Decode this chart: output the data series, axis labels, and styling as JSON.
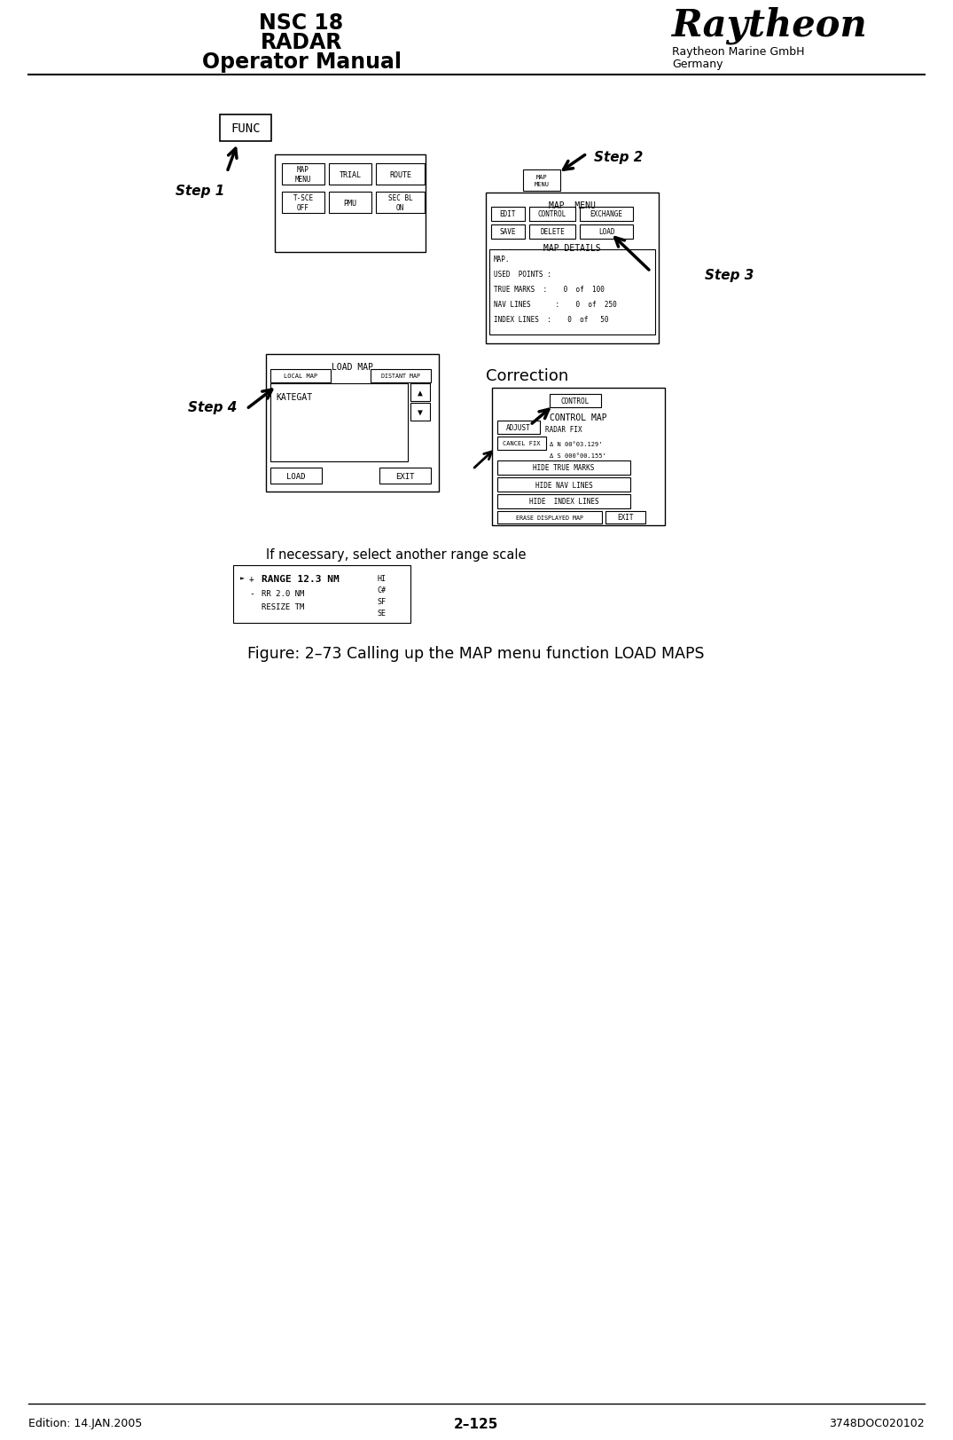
{
  "page_title_left1": "NSC 18",
  "page_title_left2": "RADAR",
  "page_title_left3": "Operator Manual",
  "logo_text": "Raytheon",
  "company_line1": "Raytheon Marine GmbH",
  "company_line2": "Germany",
  "footer_left": "Edition: 14.JAN.2005",
  "footer_center": "2–125",
  "footer_right": "3748DOC020102",
  "figure_caption": "Figure: 2–73 Calling up the MAP menu function LOAD MAPS",
  "step1_label": "Step 1",
  "step2_label": "Step 2",
  "step3_label": "Step 3",
  "step4_label": "Step 4",
  "note_text": "If necessary, select another range scale",
  "correction_label": "Correction",
  "bg_color": "#ffffff",
  "text_color": "#000000"
}
